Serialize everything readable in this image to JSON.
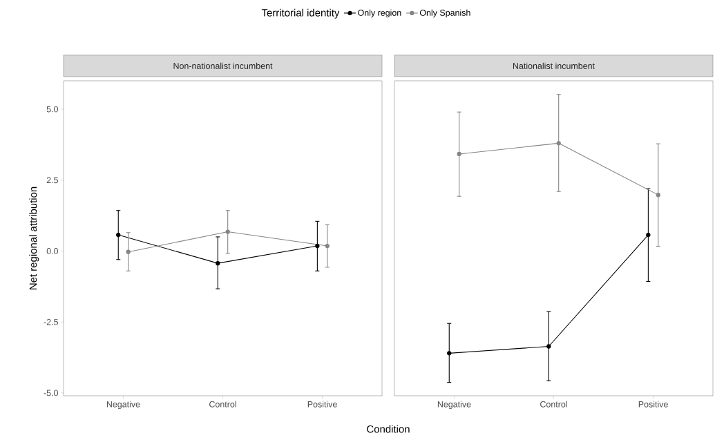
{
  "chart_data": [
    {
      "type": "line",
      "title": "Non-nationalist incumbent",
      "ylabel": "Net regional attribution",
      "xlabel": "Condition",
      "legend_title": "Territorial identity",
      "legend": "top",
      "marker": "circle",
      "line_style": "solid",
      "grid": false,
      "categories": [
        "Negative",
        "Control",
        "Positive"
      ],
      "series": [
        {
          "name": "Only region",
          "color": "#000000",
          "values": [
            0.57,
            -0.43,
            0.18
          ],
          "errors": [
            [
              -0.3,
              1.43
            ],
            [
              -1.33,
              0.5
            ],
            [
              -0.7,
              1.05
            ]
          ]
        },
        {
          "name": "Only Spanish",
          "color": "#858585",
          "values": [
            -0.03,
            0.68,
            0.18
          ],
          "errors": [
            [
              -0.7,
              0.65
            ],
            [
              -0.08,
              1.43
            ],
            [
              -0.57,
              0.93
            ]
          ]
        }
      ],
      "ylim": [
        -5.1,
        6.0
      ],
      "yticks": [
        {
          "value": -5,
          "label": "-5.0"
        },
        {
          "value": -2.5,
          "label": "-2.5"
        },
        {
          "value": 0,
          "label": "0.0"
        },
        {
          "value": 2.5,
          "label": "2.5"
        },
        {
          "value": 5,
          "label": "5.0"
        }
      ]
    },
    {
      "type": "line",
      "title": "Nationalist incumbent",
      "marker": "circle",
      "line_style": "solid",
      "grid": false,
      "tick_labels": "x",
      "categories": [
        "Negative",
        "Control",
        "Positive"
      ],
      "series": [
        {
          "color": "#000000",
          "values": [
            -3.6,
            -3.36,
            0.57
          ],
          "errors": [
            [
              -4.63,
              -2.55
            ],
            [
              -4.57,
              -2.13
            ],
            [
              -1.07,
              2.2
            ]
          ]
        },
        {
          "color": "#858585",
          "values": [
            3.42,
            3.8,
            1.98
          ],
          "errors": [
            [
              1.93,
              4.9
            ],
            [
              2.1,
              5.52
            ],
            [
              0.17,
              3.78
            ]
          ]
        }
      ],
      "ylim": [
        -5.1,
        6.0
      ]
    }
  ]
}
